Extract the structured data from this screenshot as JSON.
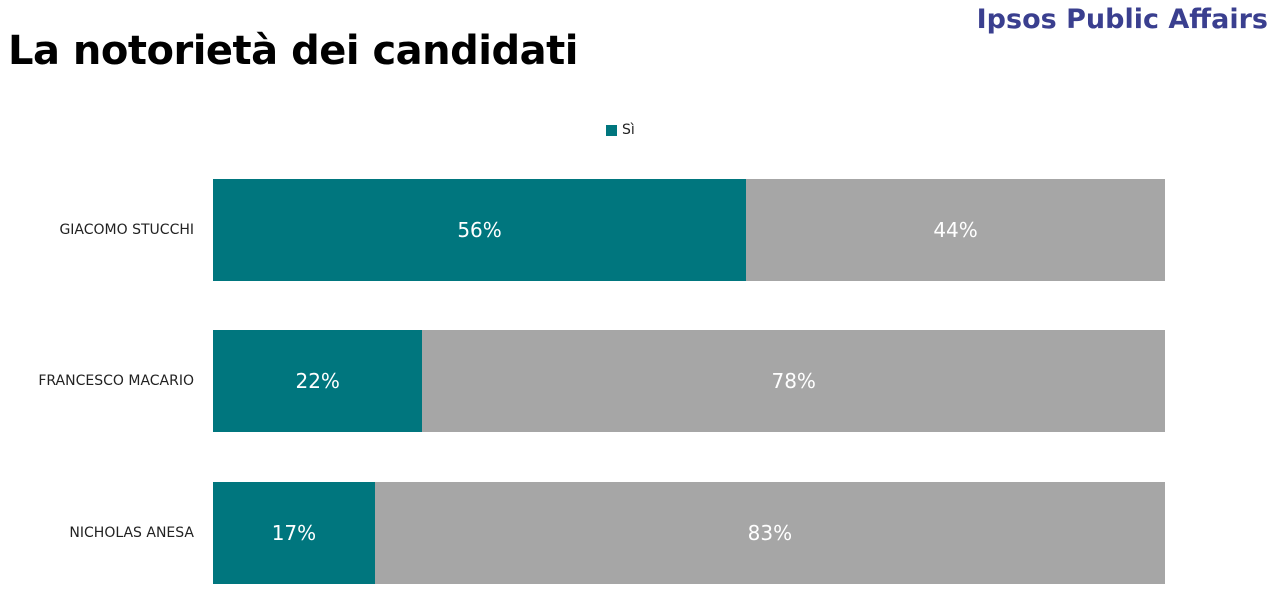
{
  "title": "La notorietà dei candidati",
  "brand": "Ipsos Public Affairs",
  "chart_data": {
    "type": "bar",
    "orientation": "horizontal",
    "stacked": true,
    "categories": [
      "GIACOMO STUCCHI",
      "FRANCESCO MACARIO",
      "NICHOLAS ANESA"
    ],
    "series": [
      {
        "name": "Sì",
        "color": "#00767e",
        "values": [
          56,
          22,
          17
        ],
        "labels": [
          "56%",
          "22%",
          "17%"
        ]
      },
      {
        "name": "",
        "color": "#a6a6a6",
        "values": [
          44,
          78,
          83
        ],
        "labels": [
          "44%",
          "78%",
          "83%"
        ]
      }
    ],
    "legend": [
      "Sì"
    ],
    "legend_position": "top",
    "xlim": [
      0,
      100
    ],
    "grid": false
  }
}
